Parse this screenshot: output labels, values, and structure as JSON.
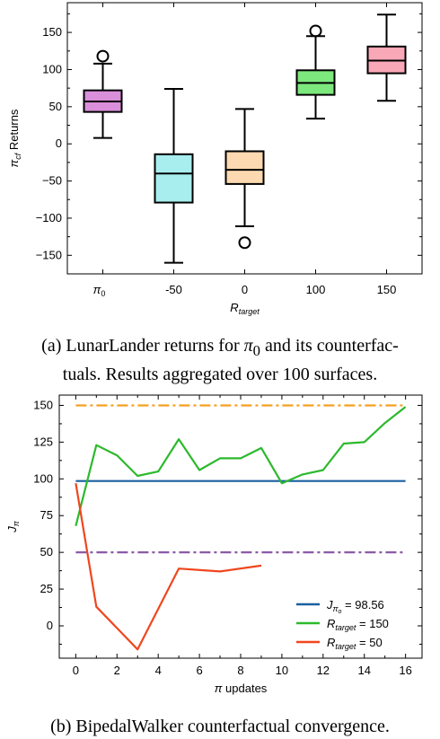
{
  "chart_data": [
    {
      "type": "box",
      "xlabel": "R_target",
      "ylabel": "π_cf Returns",
      "ylim": [
        -175,
        190
      ],
      "yticks": [
        -150,
        -100,
        -50,
        0,
        50,
        100,
        150
      ],
      "categories": [
        "π0",
        "-50",
        "0",
        "100",
        "150"
      ],
      "colors": [
        "#d98fd9",
        "#a8eeee",
        "#fcd9b0",
        "#7de87d",
        "#f9a8b8"
      ],
      "boxes": [
        {
          "whislo": 8,
          "q1": 43,
          "med": 57,
          "q3": 72,
          "whishi": 108,
          "fliers": [
            118
          ]
        },
        {
          "whislo": -160,
          "q1": -79,
          "med": -40,
          "q3": -14,
          "whishi": 74,
          "fliers": []
        },
        {
          "whislo": -111,
          "q1": -54,
          "med": -35,
          "q3": -10,
          "whishi": 47,
          "fliers": [
            -133
          ]
        },
        {
          "whislo": 34,
          "q1": 66,
          "med": 82,
          "q3": 99,
          "whishi": 145,
          "fliers": [
            152
          ]
        },
        {
          "whislo": 58,
          "q1": 95,
          "med": 112,
          "q3": 131,
          "whishi": 174,
          "fliers": []
        }
      ],
      "caption": "(a) LunarLander returns for π0 and its counterfactuals. Results aggregated over 100 surfaces."
    },
    {
      "type": "line",
      "xlabel": "π updates",
      "ylabel": "Jπ",
      "xlim": [
        -0.8,
        16.8
      ],
      "ylim": [
        -22,
        157
      ],
      "xticks": [
        0,
        2,
        4,
        6,
        8,
        10,
        12,
        14,
        16
      ],
      "yticks": [
        0,
        25,
        50,
        75,
        100,
        125,
        150
      ],
      "series": [
        {
          "name": "Jπo = 98.56",
          "color": "#1a5fa0",
          "style": "solid",
          "x": [
            0,
            16
          ],
          "values": [
            98.56,
            98.56
          ]
        },
        {
          "name": "Rtarget = 150",
          "color": "#2db92d",
          "style": "solid",
          "x": [
            0,
            1,
            2,
            3,
            4,
            5,
            6,
            7,
            8,
            9,
            10,
            11,
            12,
            13,
            14,
            15,
            16
          ],
          "values": [
            68,
            123,
            116,
            102,
            105,
            127,
            106,
            114,
            114,
            121,
            97,
            103,
            106,
            124,
            125,
            138,
            149
          ]
        },
        {
          "name": "Rtarget = 50",
          "color": "#f0461e",
          "style": "solid",
          "x": [
            0,
            1,
            3,
            5,
            7,
            9
          ],
          "values": [
            97,
            13,
            -16,
            39,
            37,
            41
          ]
        },
        {
          "name": "",
          "color": "#f5a020",
          "style": "dashdot",
          "x": [
            0,
            16
          ],
          "values": [
            150,
            150
          ]
        },
        {
          "name": "",
          "color": "#8a5aa8",
          "style": "dashdot",
          "x": [
            0,
            16
          ],
          "values": [
            50,
            50
          ]
        }
      ],
      "legend": [
        "Jπo = 98.56",
        "Rtarget = 150",
        "Rtarget = 50"
      ],
      "legend_position": "bottom-right",
      "caption": "(b) BipedalWalker counterfactual convergence."
    }
  ]
}
